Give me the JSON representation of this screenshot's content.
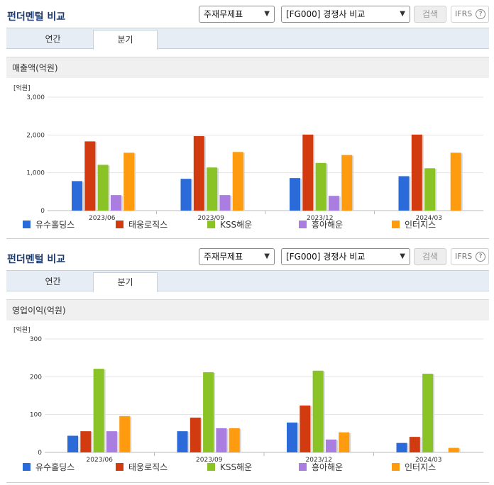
{
  "panels": [
    {
      "title": "펀더멘털 비교",
      "select1": "주재무제표",
      "select2": "[FG000] 경쟁사 비교",
      "search_label": "검색",
      "ifrs_label": "IFRS",
      "help_glyph": "?",
      "chevron_icon": "chevron-down-icon",
      "tabs": [
        "연간",
        "분기"
      ],
      "active_tab": "분기",
      "subtitle": "매출액(억원)"
    },
    {
      "title": "펀더멘털 비교",
      "select1": "주재무제표",
      "select2": "[FG000] 경쟁사 비교",
      "search_label": "검색",
      "ifrs_label": "IFRS",
      "help_glyph": "?",
      "chevron_icon": "chevron-down-icon",
      "tabs": [
        "연간",
        "분기"
      ],
      "active_tab": "분기",
      "subtitle": "영업이익(억원)"
    }
  ],
  "chart_data": [
    {
      "type": "bar",
      "unit_label": "[억원]",
      "categories": [
        "2023/06",
        "2023/09",
        "2023/12",
        "2024/03"
      ],
      "ylim": [
        0,
        3000
      ],
      "yticks": [
        "0",
        "1,000",
        "2,000",
        "3,000"
      ],
      "ytick_values": [
        0,
        1000,
        2000,
        3000
      ],
      "grid": true,
      "legend_position": "bottom",
      "series": [
        {
          "name": "유수홀딩스",
          "color": "#2a6bd9",
          "values": [
            780,
            840,
            860,
            910
          ]
        },
        {
          "name": "태웅로직스",
          "color": "#d23a10",
          "values": [
            1830,
            1970,
            2010,
            2010
          ]
        },
        {
          "name": "KSS해운",
          "color": "#8ac325",
          "values": [
            1210,
            1140,
            1260,
            1120
          ]
        },
        {
          "name": "흥아해운",
          "color": "#a97ee0",
          "values": [
            410,
            410,
            390,
            null
          ]
        },
        {
          "name": "인터지스",
          "color": "#ff9b0e",
          "values": [
            1530,
            1550,
            1470,
            1530
          ]
        }
      ]
    },
    {
      "type": "bar",
      "unit_label": "[억원]",
      "categories": [
        "2023/06",
        "2023/09",
        "2023/12",
        "2024/03"
      ],
      "ylim": [
        0,
        300
      ],
      "yticks": [
        "0",
        "100",
        "200",
        "300"
      ],
      "ytick_values": [
        0,
        100,
        200,
        300
      ],
      "grid": true,
      "legend_position": "bottom",
      "series": [
        {
          "name": "유수홀딩스",
          "color": "#2a6bd9",
          "values": [
            44,
            56,
            79,
            25
          ]
        },
        {
          "name": "태웅로직스",
          "color": "#d23a10",
          "values": [
            56,
            92,
            124,
            41
          ]
        },
        {
          "name": "KSS해운",
          "color": "#8ac325",
          "values": [
            221,
            212,
            216,
            208
          ]
        },
        {
          "name": "흥아해운",
          "color": "#a97ee0",
          "values": [
            56,
            64,
            34,
            null
          ]
        },
        {
          "name": "인터지스",
          "color": "#ff9b0e",
          "values": [
            96,
            64,
            53,
            12
          ]
        }
      ]
    }
  ]
}
